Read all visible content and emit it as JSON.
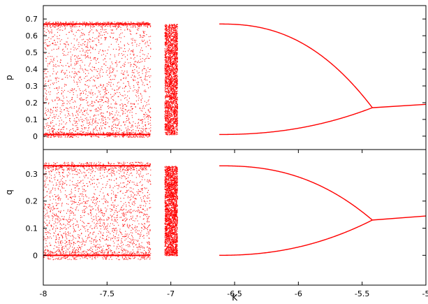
{
  "chart_data": [
    {
      "type": "scatter",
      "panel": "top",
      "xlabel": "",
      "ylabel": "p",
      "xlim": [
        -8,
        -5
      ],
      "ylim": [
        -0.08,
        0.78
      ],
      "yticks": [
        "0",
        "0.1",
        "0.2",
        "0.3",
        "0.4",
        "0.5",
        "0.6",
        "0.7"
      ],
      "grid": false,
      "series": [
        {
          "color": "#ff0000",
          "description_points": {
            "chaotic_region_x": [
              -8,
              -7.16
            ],
            "dense_band_x": [
              -7.05,
              -6.95
            ],
            "period_doubling_start_x": -6.62,
            "period_doubling_end_x": -5.42,
            "fixed_point_at_-5.42": 0.17,
            "fixed_point_at_-5": 0.19,
            "upper_branch_start": 0.67,
            "lower_branch_start": 0.01
          }
        }
      ]
    },
    {
      "type": "scatter",
      "panel": "bottom",
      "xlabel": "K",
      "ylabel": "q",
      "xlim": [
        -8,
        -5
      ],
      "ylim": [
        -0.11,
        0.39
      ],
      "xticks": [
        "-8",
        "-7.5",
        "-7",
        "-6.5",
        "-6",
        "-5.5",
        "-5"
      ],
      "yticks": [
        "0",
        "0.1",
        "0.2",
        "0.3"
      ],
      "grid": false,
      "series": [
        {
          "color": "#ff0000",
          "description_points": {
            "chaotic_region_x": [
              -8,
              -7.16
            ],
            "dense_band_x": [
              -7.05,
              -6.95
            ],
            "period_doubling_start_x": -6.62,
            "period_doubling_end_x": -5.42,
            "fixed_point_at_-5.42": 0.13,
            "fixed_point_at_-5": 0.145,
            "upper_branch_start": 0.33,
            "lower_branch_start": 0.0
          }
        }
      ]
    }
  ]
}
